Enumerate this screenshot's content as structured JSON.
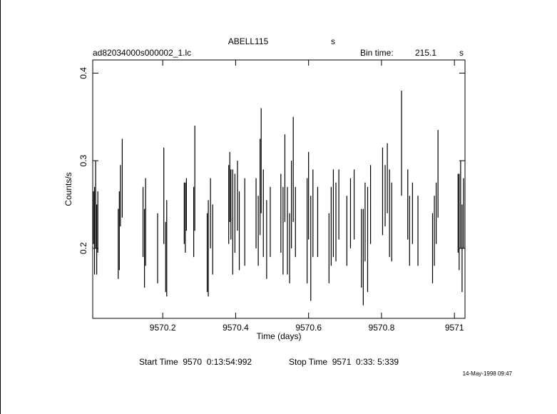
{
  "chart_data": {
    "type": "errorbar",
    "title": "ABELL115",
    "title_unit": "s",
    "file": "ad82034000s000002_1.lc",
    "bin_time_label": "Bin time:",
    "bin_time": 215.1,
    "bin_time_unit": "s",
    "xlabel": "Time (days)",
    "ylabel": "Counts/s",
    "start_time": "Start Time  9570  0:13:54:992",
    "stop_time": "Stop Time  9571  0:33: 5:339",
    "timestamp": "14-May-1998 09:47",
    "color": "#000000",
    "xlim": [
      9570.008,
      9571.029
    ],
    "ylim": [
      0.12,
      0.415
    ],
    "xticks": [
      9570.2,
      9570.4,
      9570.6,
      9570.8,
      9571
    ],
    "yticks": [
      0.2,
      0.3,
      0.4
    ],
    "x": [
      9570.01,
      9570.013,
      9570.016,
      9570.019,
      9570.022,
      9570.078,
      9570.081,
      9570.084,
      9570.089,
      9570.146,
      9570.15,
      9570.153,
      9570.186,
      9570.203,
      9570.208,
      9570.211,
      9570.259,
      9570.262,
      9570.265,
      9570.285,
      9570.288,
      9570.322,
      9570.325,
      9570.331,
      9570.337,
      9570.381,
      9570.384,
      9570.387,
      9570.392,
      9570.398,
      9570.405,
      9570.41,
      9570.425,
      9570.456,
      9570.462,
      9570.467,
      9570.47,
      9570.476,
      9570.485,
      9570.495,
      9570.524,
      9570.53,
      9570.535,
      9570.542,
      9570.548,
      9570.553,
      9570.558,
      9570.564,
      9570.596,
      9570.6,
      9570.606,
      9570.612,
      9570.625,
      9570.656,
      9570.662,
      9570.668,
      9570.675,
      9570.683,
      9570.705,
      9570.715,
      9570.725,
      9570.745,
      9570.75,
      9570.755,
      9570.762,
      9570.77,
      9570.803,
      9570.81,
      9570.816,
      9570.822,
      9570.828,
      9570.855,
      9570.872,
      9570.877,
      9570.885,
      9570.9,
      9570.94,
      9570.945,
      9570.95,
      9570.955,
      9571.01,
      9571.013,
      9571.017,
      9571.021,
      9571.025
    ],
    "values": [
      0.235,
      0.22,
      0.25,
      0.21,
      0.23,
      0.205,
      0.22,
      0.26,
      0.28,
      0.23,
      0.2,
      0.23,
      0.2,
      0.26,
      0.19,
      0.2,
      0.24,
      0.235,
      0.25,
      0.23,
      0.28,
      0.195,
      0.2,
      0.24,
      0.21,
      0.25,
      0.27,
      0.25,
      0.23,
      0.24,
      0.26,
      0.22,
      0.23,
      0.24,
      0.22,
      0.27,
      0.3,
      0.24,
      0.21,
      0.23,
      0.24,
      0.22,
      0.28,
      0.22,
      0.2,
      0.25,
      0.29,
      0.23,
      0.22,
      0.26,
      0.2,
      0.24,
      0.23,
      0.2,
      0.225,
      0.24,
      0.23,
      0.25,
      0.22,
      0.24,
      0.25,
      0.2,
      0.19,
      0.23,
      0.21,
      0.25,
      0.265,
      0.26,
      0.28,
      0.24,
      0.23,
      0.32,
      0.25,
      0.22,
      0.24,
      0.22,
      0.2,
      0.22,
      0.24,
      0.285,
      0.24,
      0.23,
      0.25,
      0.2,
      0.24
    ],
    "errors": [
      0.03,
      0.05,
      0.05,
      0.04,
      0.035,
      0.04,
      0.045,
      0.035,
      0.045,
      0.04,
      0.045,
      0.05,
      0.04,
      0.055,
      0.04,
      0.055,
      0.035,
      0.04,
      0.03,
      0.04,
      0.06,
      0.045,
      0.055,
      0.04,
      0.04,
      0.045,
      0.04,
      0.04,
      0.06,
      0.045,
      0.04,
      0.045,
      0.05,
      0.04,
      0.04,
      0.055,
      0.06,
      0.05,
      0.045,
      0.04,
      0.045,
      0.05,
      0.05,
      0.05,
      0.04,
      0.05,
      0.06,
      0.04,
      0.06,
      0.05,
      0.06,
      0.05,
      0.04,
      0.04,
      0.045,
      0.05,
      0.045,
      0.04,
      0.04,
      0.04,
      0.04,
      0.045,
      0.055,
      0.045,
      0.06,
      0.045,
      0.05,
      0.035,
      0.04,
      0.05,
      0.045,
      0.06,
      0.04,
      0.04,
      0.035,
      0.04,
      0.04,
      0.04,
      0.035,
      0.05,
      0.045,
      0.055,
      0.05,
      0.05,
      0.04
    ]
  }
}
